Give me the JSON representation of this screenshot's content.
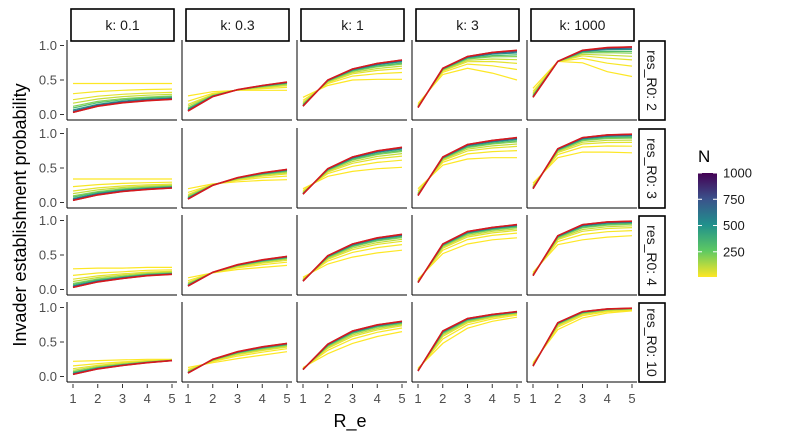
{
  "chart_data": {
    "type": "line",
    "title": "",
    "xlabel": "R_e",
    "ylabel": "Invader establishment probability",
    "x": [
      1,
      2,
      3,
      4,
      5
    ],
    "xticks": [
      "1",
      "2",
      "3",
      "4",
      "5"
    ],
    "xlim": [
      1,
      5
    ],
    "ylim": [
      0,
      1
    ],
    "yticks": [
      "0.0",
      "0.5",
      "1.0"
    ],
    "col_facets": [
      "k: 0.1",
      "k: 0.3",
      "k: 1",
      "k: 3",
      "k: 1000"
    ],
    "row_facets": [
      "res_R0: 2",
      "res_R0: 3",
      "res_R0: 4",
      "res_R0: 10"
    ],
    "legend": {
      "title": "N",
      "ticks": [
        "250",
        "500",
        "750",
        "1000"
      ],
      "range": [
        10,
        1000
      ],
      "low_color": "#fde725",
      "high_color": "#440154"
    },
    "N_values": [
      10,
      20,
      50,
      100,
      200,
      300,
      500,
      700,
      1000
    ],
    "reference_series_color": "#d7191c",
    "panels": [
      {
        "row": 0,
        "col": 0,
        "ref": [
          0.03,
          0.12,
          0.17,
          0.2,
          0.22
        ],
        "sat": [
          0.45,
          0.45,
          0.45,
          0.45,
          0.45
        ]
      },
      {
        "row": 0,
        "col": 1,
        "ref": [
          0.05,
          0.26,
          0.36,
          0.42,
          0.47
        ],
        "sat": [
          0.27,
          0.33,
          0.35,
          0.35,
          0.35
        ]
      },
      {
        "row": 0,
        "col": 2,
        "ref": [
          0.12,
          0.5,
          0.66,
          0.74,
          0.79
        ],
        "sat": [
          0.25,
          0.42,
          0.5,
          0.51,
          0.51
        ]
      },
      {
        "row": 0,
        "col": 3,
        "ref": [
          0.1,
          0.67,
          0.84,
          0.9,
          0.93
        ],
        "sat": [
          0.16,
          0.58,
          0.67,
          0.6,
          0.5
        ]
      },
      {
        "row": 0,
        "col": 4,
        "ref": [
          0.25,
          0.77,
          0.93,
          0.97,
          0.98
        ],
        "sat": [
          0.38,
          0.77,
          0.75,
          0.62,
          0.55
        ]
      },
      {
        "row": 1,
        "col": 0,
        "ref": [
          0.03,
          0.11,
          0.16,
          0.19,
          0.21
        ],
        "sat": [
          0.34,
          0.34,
          0.34,
          0.34,
          0.34
        ]
      },
      {
        "row": 1,
        "col": 1,
        "ref": [
          0.05,
          0.25,
          0.36,
          0.43,
          0.48
        ],
        "sat": [
          0.2,
          0.27,
          0.3,
          0.32,
          0.33
        ]
      },
      {
        "row": 1,
        "col": 2,
        "ref": [
          0.12,
          0.49,
          0.66,
          0.75,
          0.8
        ],
        "sat": [
          0.2,
          0.38,
          0.45,
          0.49,
          0.51
        ]
      },
      {
        "row": 1,
        "col": 3,
        "ref": [
          0.1,
          0.66,
          0.84,
          0.9,
          0.94
        ],
        "sat": [
          0.2,
          0.54,
          0.63,
          0.65,
          0.65
        ]
      },
      {
        "row": 1,
        "col": 4,
        "ref": [
          0.2,
          0.78,
          0.94,
          0.98,
          0.99
        ],
        "sat": [
          0.28,
          0.65,
          0.73,
          0.73,
          0.72
        ]
      },
      {
        "row": 2,
        "col": 0,
        "ref": [
          0.03,
          0.11,
          0.16,
          0.2,
          0.22
        ],
        "sat": [
          0.3,
          0.31,
          0.31,
          0.32,
          0.32
        ]
      },
      {
        "row": 2,
        "col": 1,
        "ref": [
          0.05,
          0.25,
          0.36,
          0.43,
          0.48
        ],
        "sat": [
          0.17,
          0.24,
          0.29,
          0.32,
          0.35
        ]
      },
      {
        "row": 2,
        "col": 2,
        "ref": [
          0.12,
          0.49,
          0.66,
          0.75,
          0.8
        ],
        "sat": [
          0.18,
          0.37,
          0.47,
          0.53,
          0.57
        ]
      },
      {
        "row": 2,
        "col": 3,
        "ref": [
          0.1,
          0.66,
          0.84,
          0.9,
          0.94
        ],
        "sat": [
          0.15,
          0.52,
          0.66,
          0.72,
          0.75
        ]
      },
      {
        "row": 2,
        "col": 4,
        "ref": [
          0.2,
          0.78,
          0.94,
          0.98,
          0.99
        ],
        "sat": [
          0.25,
          0.65,
          0.72,
          0.76,
          0.78
        ]
      },
      {
        "row": 3,
        "col": 0,
        "ref": [
          0.03,
          0.11,
          0.16,
          0.2,
          0.23
        ],
        "sat": [
          0.22,
          0.23,
          0.24,
          0.25,
          0.25
        ]
      },
      {
        "row": 3,
        "col": 1,
        "ref": [
          0.05,
          0.25,
          0.36,
          0.43,
          0.48
        ],
        "sat": [
          0.13,
          0.2,
          0.26,
          0.31,
          0.36
        ]
      },
      {
        "row": 3,
        "col": 2,
        "ref": [
          0.1,
          0.47,
          0.66,
          0.75,
          0.8
        ],
        "sat": [
          0.13,
          0.33,
          0.48,
          0.58,
          0.65
        ]
      },
      {
        "row": 3,
        "col": 3,
        "ref": [
          0.08,
          0.66,
          0.84,
          0.9,
          0.94
        ],
        "sat": [
          0.12,
          0.48,
          0.7,
          0.8,
          0.86
        ]
      },
      {
        "row": 3,
        "col": 4,
        "ref": [
          0.15,
          0.78,
          0.94,
          0.98,
          0.99
        ],
        "sat": [
          0.2,
          0.68,
          0.85,
          0.92,
          0.95
        ]
      }
    ]
  }
}
